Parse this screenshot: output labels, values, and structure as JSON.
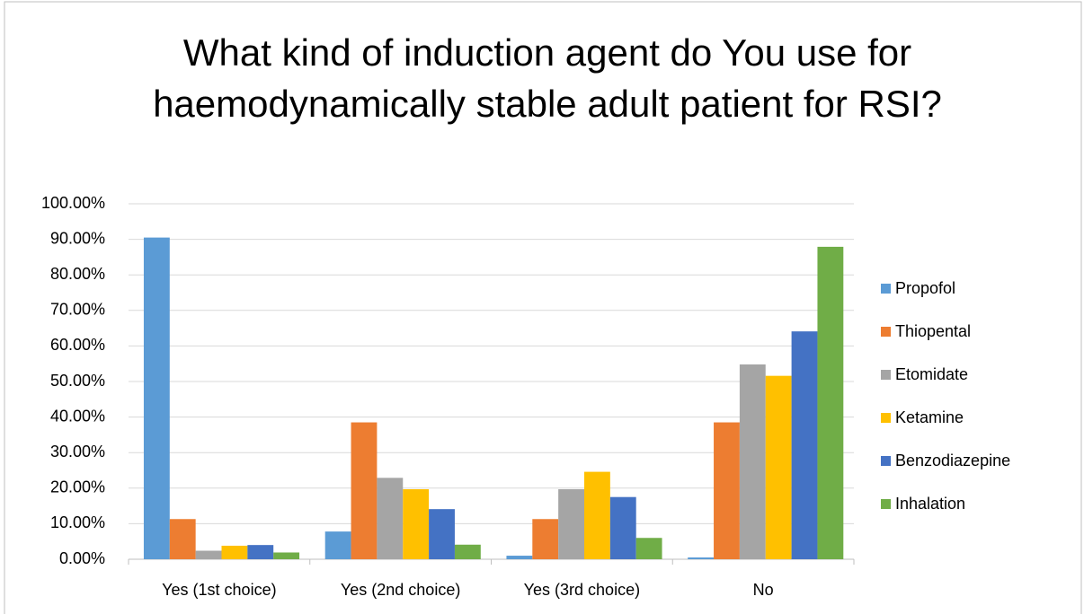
{
  "chart_data": {
    "type": "bar",
    "title": "What kind of induction agent do You use for haemodynamically stable adult patient for RSI?",
    "categories": [
      "Yes (1st choice)",
      "Yes (2nd choice)",
      "Yes (3rd choice)",
      "No"
    ],
    "series": [
      {
        "name": "Propofol",
        "color": "#5b9bd5",
        "values": [
          90.5,
          7.8,
          1.0,
          0.5
        ]
      },
      {
        "name": "Thiopental",
        "color": "#ed7d31",
        "values": [
          11.3,
          38.5,
          11.3,
          38.5
        ]
      },
      {
        "name": "Etomidate",
        "color": "#a5a5a5",
        "values": [
          2.4,
          22.9,
          19.7,
          54.8
        ]
      },
      {
        "name": "Ketamine",
        "color": "#ffc000",
        "values": [
          3.8,
          19.7,
          24.6,
          51.6
        ]
      },
      {
        "name": "Benzodiazepine",
        "color": "#4472c4",
        "values": [
          4.0,
          14.1,
          17.5,
          64.1
        ]
      },
      {
        "name": "Inhalation",
        "color": "#70ad47",
        "values": [
          1.9,
          4.1,
          6.0,
          87.9
        ]
      }
    ],
    "ylim": [
      0,
      100
    ],
    "yticks": [
      {
        "value": 0,
        "label": "0.00%"
      },
      {
        "value": 10,
        "label": "10.00%"
      },
      {
        "value": 20,
        "label": "20.00%"
      },
      {
        "value": 30,
        "label": "30.00%"
      },
      {
        "value": 40,
        "label": "40.00%"
      },
      {
        "value": 50,
        "label": "50.00%"
      },
      {
        "value": 60,
        "label": "60.00%"
      },
      {
        "value": 70,
        "label": "70.00%"
      },
      {
        "value": 80,
        "label": "80.00%"
      },
      {
        "value": 90,
        "label": "90.00%"
      },
      {
        "value": 100,
        "label": "100.00%"
      }
    ],
    "grid": true,
    "legend": "right"
  }
}
